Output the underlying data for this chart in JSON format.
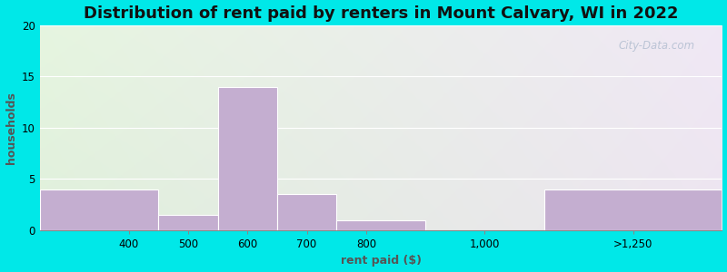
{
  "title": "Distribution of rent paid by renters in Mount Calvary, WI in 2022",
  "xlabel": "rent paid ($)",
  "ylabel": "households",
  "bar_edges": [
    250,
    450,
    550,
    650,
    750,
    900,
    1100,
    1400
  ],
  "tick_positions": [
    400,
    500,
    600,
    700,
    800,
    1000,
    1250
  ],
  "tick_labels": [
    "400",
    "500",
    "600",
    "700",
    "800",
    "1,000",
    ">1,250"
  ],
  "values": [
    4,
    1.5,
    14,
    3.5,
    1,
    0,
    4
  ],
  "bar_color": "#c4aed0",
  "bar_edgecolor": "#c4aed0",
  "ylim": [
    0,
    20
  ],
  "yticks": [
    0,
    5,
    10,
    15,
    20
  ],
  "background_outer": "#00e8e8",
  "bg_top_left": "#e6f5e0",
  "bg_top_right": "#f0e8f5",
  "bg_bottom_left": "#dff0dc",
  "bg_bottom_right": "#ede5f0",
  "grid_color": "#e8dced",
  "title_fontsize": 13,
  "axis_label_fontsize": 9,
  "tick_fontsize": 8.5,
  "watermark_text": "City-Data.com"
}
